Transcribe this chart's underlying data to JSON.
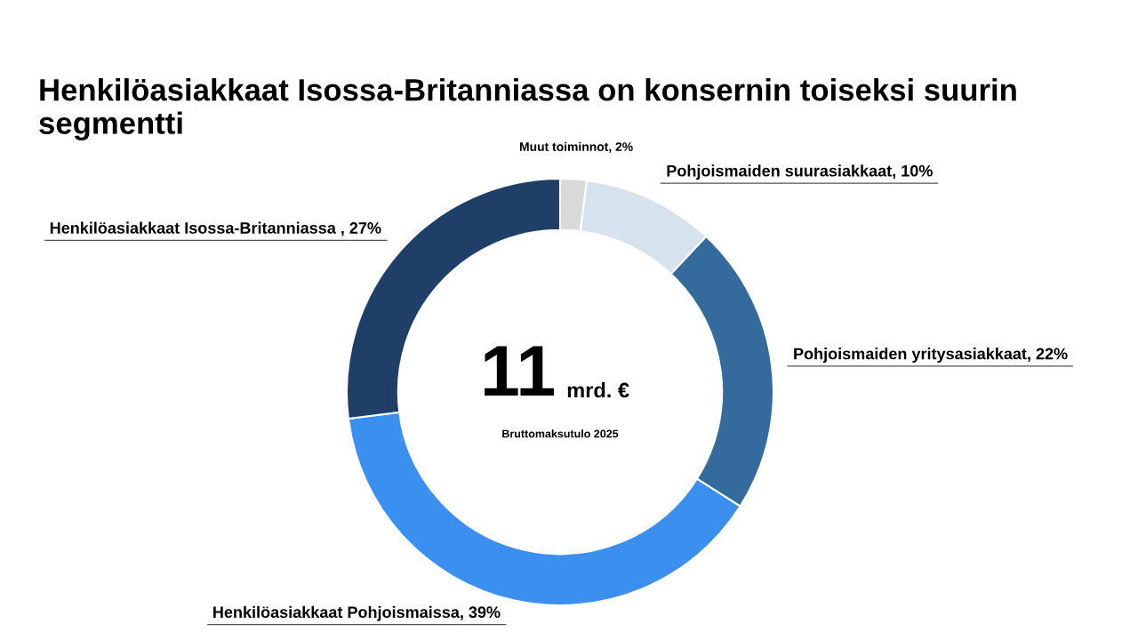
{
  "chart_data": {
    "type": "donut",
    "title": "Henkilöasiakkaat Isossa-Britanniassa on konsernin toiseksi suurin segmentti",
    "categories": [
      "Muut toiminnot, 2%",
      "Pohjoismaiden suurasiakkaat, 10%",
      "Pohjoismaiden yritysasiakkaat, 22%",
      "Henkilöasiakkaat Pohjoismaissa, 39%",
      "Henkilöasiakkaat Isossa-Britanniassa , 27%"
    ],
    "values": [
      2,
      10,
      22,
      39,
      27
    ],
    "colors": [
      "#d9d9d9",
      "#d6e2ed",
      "#356a9c",
      "#3a8fef",
      "#1f3f69"
    ],
    "annotations": [
      "11",
      "mrd. €",
      "Bruttomaksutulo 2025"
    ]
  }
}
